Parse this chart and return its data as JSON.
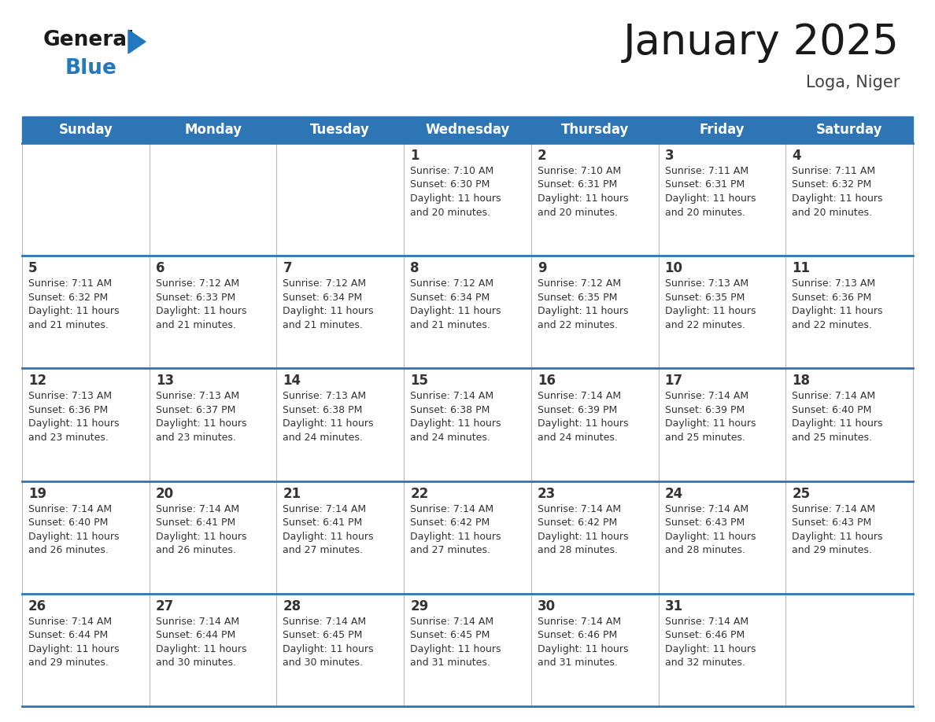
{
  "title": "January 2025",
  "subtitle": "Loga, Niger",
  "header_bg": "#2E75B6",
  "header_text_color": "#FFFFFF",
  "days_of_week": [
    "Sunday",
    "Monday",
    "Tuesday",
    "Wednesday",
    "Thursday",
    "Friday",
    "Saturday"
  ],
  "cell_bg": "#FFFFFF",
  "border_color_blue": "#2E75B6",
  "border_color_light": "#BBBBBB",
  "text_color": "#333333",
  "day_number_color": "#333333",
  "calendar_data": [
    [
      null,
      null,
      null,
      {
        "day": 1,
        "sunrise": "7:10 AM",
        "sunset": "6:30 PM",
        "daylight": "11 hours and 20 minutes."
      },
      {
        "day": 2,
        "sunrise": "7:10 AM",
        "sunset": "6:31 PM",
        "daylight": "11 hours and 20 minutes."
      },
      {
        "day": 3,
        "sunrise": "7:11 AM",
        "sunset": "6:31 PM",
        "daylight": "11 hours and 20 minutes."
      },
      {
        "day": 4,
        "sunrise": "7:11 AM",
        "sunset": "6:32 PM",
        "daylight": "11 hours and 20 minutes."
      }
    ],
    [
      {
        "day": 5,
        "sunrise": "7:11 AM",
        "sunset": "6:32 PM",
        "daylight": "11 hours and 21 minutes."
      },
      {
        "day": 6,
        "sunrise": "7:12 AM",
        "sunset": "6:33 PM",
        "daylight": "11 hours and 21 minutes."
      },
      {
        "day": 7,
        "sunrise": "7:12 AM",
        "sunset": "6:34 PM",
        "daylight": "11 hours and 21 minutes."
      },
      {
        "day": 8,
        "sunrise": "7:12 AM",
        "sunset": "6:34 PM",
        "daylight": "11 hours and 21 minutes."
      },
      {
        "day": 9,
        "sunrise": "7:12 AM",
        "sunset": "6:35 PM",
        "daylight": "11 hours and 22 minutes."
      },
      {
        "day": 10,
        "sunrise": "7:13 AM",
        "sunset": "6:35 PM",
        "daylight": "11 hours and 22 minutes."
      },
      {
        "day": 11,
        "sunrise": "7:13 AM",
        "sunset": "6:36 PM",
        "daylight": "11 hours and 22 minutes."
      }
    ],
    [
      {
        "day": 12,
        "sunrise": "7:13 AM",
        "sunset": "6:36 PM",
        "daylight": "11 hours and 23 minutes."
      },
      {
        "day": 13,
        "sunrise": "7:13 AM",
        "sunset": "6:37 PM",
        "daylight": "11 hours and 23 minutes."
      },
      {
        "day": 14,
        "sunrise": "7:13 AM",
        "sunset": "6:38 PM",
        "daylight": "11 hours and 24 minutes."
      },
      {
        "day": 15,
        "sunrise": "7:14 AM",
        "sunset": "6:38 PM",
        "daylight": "11 hours and 24 minutes."
      },
      {
        "day": 16,
        "sunrise": "7:14 AM",
        "sunset": "6:39 PM",
        "daylight": "11 hours and 24 minutes."
      },
      {
        "day": 17,
        "sunrise": "7:14 AM",
        "sunset": "6:39 PM",
        "daylight": "11 hours and 25 minutes."
      },
      {
        "day": 18,
        "sunrise": "7:14 AM",
        "sunset": "6:40 PM",
        "daylight": "11 hours and 25 minutes."
      }
    ],
    [
      {
        "day": 19,
        "sunrise": "7:14 AM",
        "sunset": "6:40 PM",
        "daylight": "11 hours and 26 minutes."
      },
      {
        "day": 20,
        "sunrise": "7:14 AM",
        "sunset": "6:41 PM",
        "daylight": "11 hours and 26 minutes."
      },
      {
        "day": 21,
        "sunrise": "7:14 AM",
        "sunset": "6:41 PM",
        "daylight": "11 hours and 27 minutes."
      },
      {
        "day": 22,
        "sunrise": "7:14 AM",
        "sunset": "6:42 PM",
        "daylight": "11 hours and 27 minutes."
      },
      {
        "day": 23,
        "sunrise": "7:14 AM",
        "sunset": "6:42 PM",
        "daylight": "11 hours and 28 minutes."
      },
      {
        "day": 24,
        "sunrise": "7:14 AM",
        "sunset": "6:43 PM",
        "daylight": "11 hours and 28 minutes."
      },
      {
        "day": 25,
        "sunrise": "7:14 AM",
        "sunset": "6:43 PM",
        "daylight": "11 hours and 29 minutes."
      }
    ],
    [
      {
        "day": 26,
        "sunrise": "7:14 AM",
        "sunset": "6:44 PM",
        "daylight": "11 hours and 29 minutes."
      },
      {
        "day": 27,
        "sunrise": "7:14 AM",
        "sunset": "6:44 PM",
        "daylight": "11 hours and 30 minutes."
      },
      {
        "day": 28,
        "sunrise": "7:14 AM",
        "sunset": "6:45 PM",
        "daylight": "11 hours and 30 minutes."
      },
      {
        "day": 29,
        "sunrise": "7:14 AM",
        "sunset": "6:45 PM",
        "daylight": "11 hours and 31 minutes."
      },
      {
        "day": 30,
        "sunrise": "7:14 AM",
        "sunset": "6:46 PM",
        "daylight": "11 hours and 31 minutes."
      },
      {
        "day": 31,
        "sunrise": "7:14 AM",
        "sunset": "6:46 PM",
        "daylight": "11 hours and 32 minutes."
      },
      null
    ]
  ],
  "logo_color_general": "#1a1a1a",
  "logo_color_blue": "#2479BE",
  "title_fontsize": 38,
  "subtitle_fontsize": 15,
  "header_fontsize": 12,
  "day_num_fontsize": 12,
  "cell_text_fontsize": 9
}
